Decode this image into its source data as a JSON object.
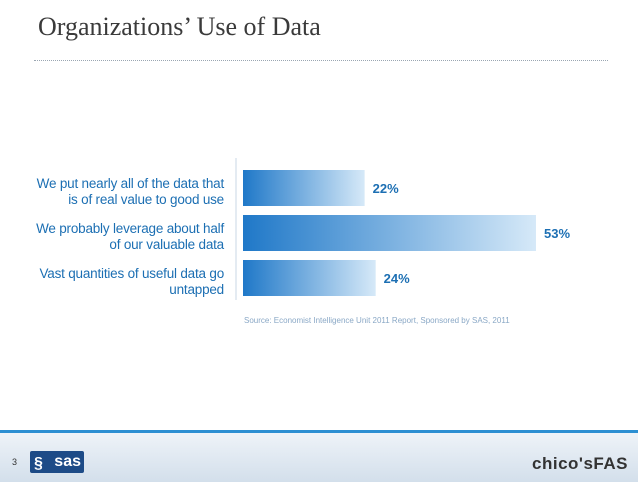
{
  "slide": {
    "title": "Organizations’ Use of Data",
    "page_number": "3"
  },
  "chart_data": {
    "type": "bar",
    "orientation": "horizontal",
    "categories": [
      "We put nearly all of the data that is of real value to good use",
      "We probably leverage about half of our valuable data",
      "Vast quantities of useful data go untapped"
    ],
    "category_lines": [
      [
        "We put nearly all of the data that",
        "is of real value to good use"
      ],
      [
        "We probably leverage about half",
        "of our valuable data"
      ],
      [
        "Vast quantities of useful data go",
        "untapped"
      ]
    ],
    "values": [
      22,
      53,
      24
    ],
    "value_labels": [
      "22%",
      "53%",
      "24%"
    ],
    "unit": "%",
    "xlim": [
      0,
      53
    ],
    "grid": false,
    "source": "Source: Economist Intelligence  Unit 2011 Report, Sponsored by SAS, 2011",
    "colors": {
      "bar_dark": "#1f78c8",
      "bar_light": "#d6e9f8",
      "label": "#1c6fb3"
    }
  },
  "footer": {
    "sas_logo_text": "sas",
    "chicos_logo_text": "chico'sFAS"
  }
}
